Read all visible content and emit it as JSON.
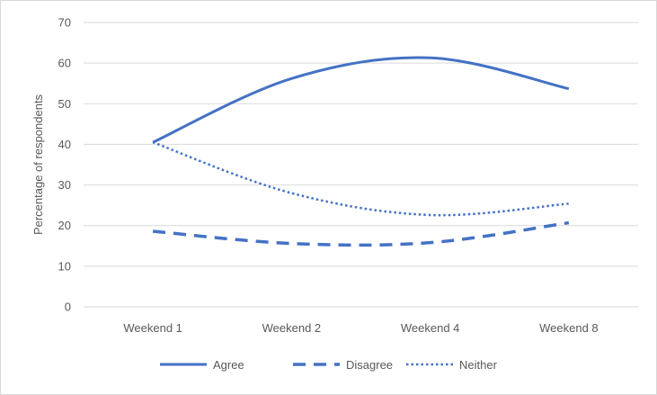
{
  "chart_data": {
    "type": "line",
    "categories": [
      "Weekend 1",
      "Weekend 2",
      "Weekend 4",
      "Weekend 8"
    ],
    "series": [
      {
        "name": "Agree",
        "values": [
          40.5,
          56.2,
          61.3,
          53.7
        ],
        "dash": "solid"
      },
      {
        "name": "Disagree",
        "values": [
          18.6,
          15.6,
          15.8,
          20.7
        ],
        "dash": "dashed"
      },
      {
        "name": "Neither",
        "values": [
          40.5,
          28.0,
          22.6,
          25.4
        ],
        "dash": "dotted"
      }
    ],
    "ylabel": "Percentage of respondents",
    "xlabel": "",
    "ylim": [
      0,
      70
    ],
    "yticks": [
      0,
      10,
      20,
      30,
      40,
      50,
      60,
      70
    ],
    "grid": true,
    "legend_position": "bottom",
    "colors": {
      "series": "#4472c4",
      "grid": "#d9d9d9",
      "text": "#595959"
    }
  }
}
